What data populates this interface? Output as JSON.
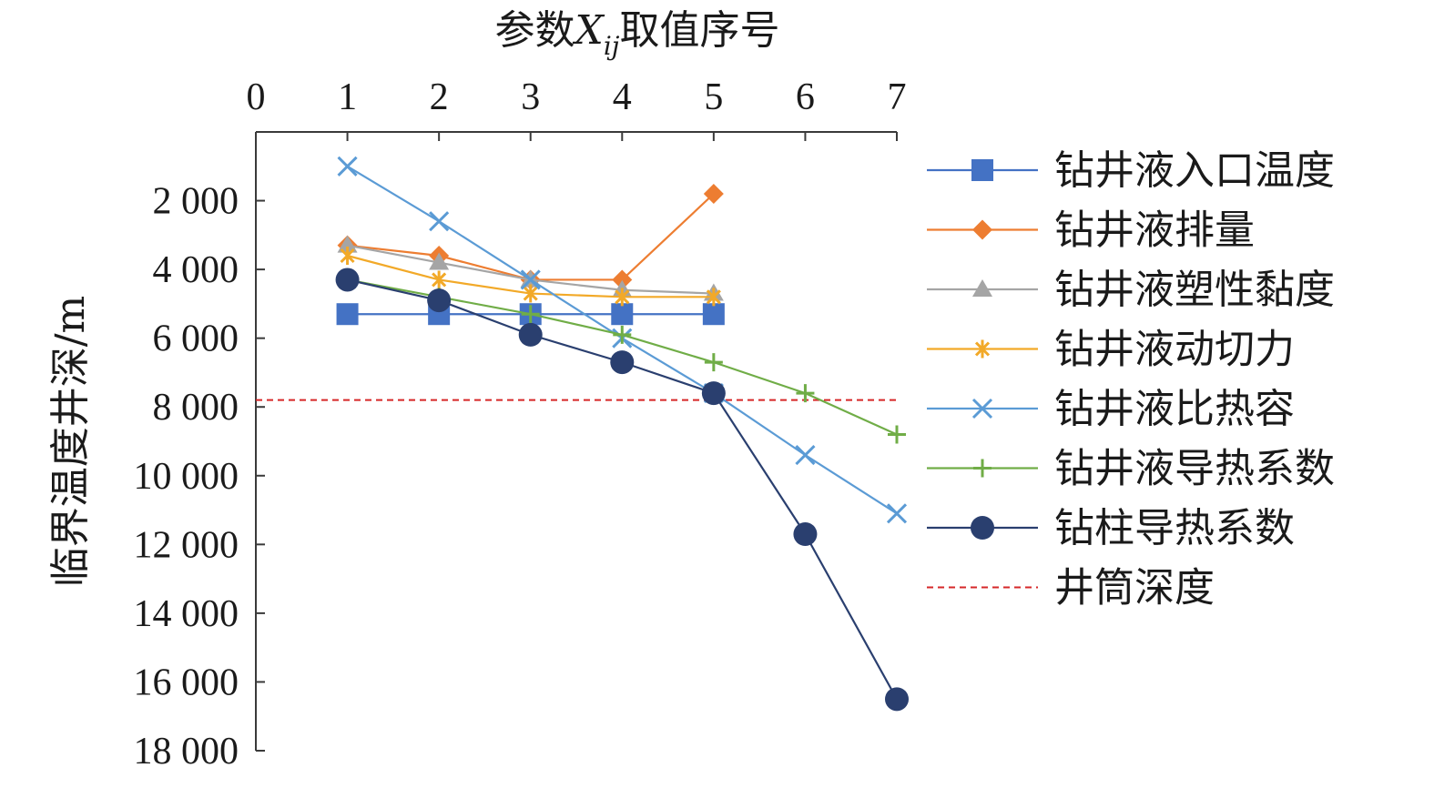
{
  "chart_data": {
    "type": "line",
    "xlabel": "参数Xij取值序号",
    "xlabel_parts": {
      "pre": "参数",
      "italic": "X",
      "sub": "ij",
      "post": "取值序号"
    },
    "ylabel": "临界温度井深/m",
    "x_axis_position": "top",
    "y_axis_reversed": true,
    "xlim": [
      0,
      7
    ],
    "ylim": [
      0,
      18000
    ],
    "x_ticks": [
      0,
      1,
      2,
      3,
      4,
      5,
      6,
      7
    ],
    "x_tick_labels": [
      "0",
      "1",
      "2",
      "3",
      "4",
      "5",
      "6",
      "7"
    ],
    "y_ticks": [
      2000,
      4000,
      6000,
      8000,
      10000,
      12000,
      14000,
      16000,
      18000
    ],
    "y_tick_labels": [
      "2 000",
      "4 000",
      "6 000",
      "8 000",
      "10 000",
      "12 000",
      "14 000",
      "16 000",
      "18 000"
    ],
    "grid": false,
    "legend_position": "right",
    "series": [
      {
        "name": "钻井液入口温度",
        "color": "#4472C4",
        "marker": "square",
        "x": [
          1,
          2,
          3,
          4,
          5
        ],
        "y": [
          5300,
          5300,
          5300,
          5300,
          5300
        ]
      },
      {
        "name": "钻井液排量",
        "color": "#ED7D31",
        "marker": "diamond",
        "x": [
          1,
          2,
          3,
          4,
          5
        ],
        "y": [
          3300,
          3600,
          4300,
          4300,
          1800
        ]
      },
      {
        "name": "钻井液塑性黏度",
        "color": "#A5A5A5",
        "marker": "triangle",
        "x": [
          1,
          2,
          3,
          4,
          5
        ],
        "y": [
          3300,
          3800,
          4300,
          4600,
          4700
        ]
      },
      {
        "name": "钻井液动切力",
        "color": "#F2A928",
        "marker": "asterisk",
        "x": [
          1,
          2,
          3,
          4,
          5
        ],
        "y": [
          3600,
          4300,
          4700,
          4800,
          4800
        ]
      },
      {
        "name": "钻井液比热容",
        "color": "#5B9BD5",
        "marker": "x",
        "x": [
          1,
          2,
          3,
          4,
          5,
          6,
          7
        ],
        "y": [
          1000,
          2600,
          4300,
          6000,
          7600,
          9400,
          11100
        ]
      },
      {
        "name": "钻井液导热系数",
        "color": "#70AD47",
        "marker": "plus",
        "x": [
          1,
          2,
          3,
          4,
          5,
          6,
          7
        ],
        "y": [
          4300,
          4800,
          5300,
          5900,
          6700,
          7600,
          8800
        ]
      },
      {
        "name": "钻柱导热系数",
        "color": "#2A3F6F",
        "marker": "circle",
        "x": [
          1,
          2,
          3,
          4,
          5,
          6,
          7
        ],
        "y": [
          4300,
          4900,
          5900,
          6700,
          7600,
          11700,
          16500
        ]
      }
    ],
    "reference_lines": [
      {
        "name": "井筒深度",
        "color": "#D62728",
        "style": "dashed",
        "y": 7800
      }
    ]
  }
}
